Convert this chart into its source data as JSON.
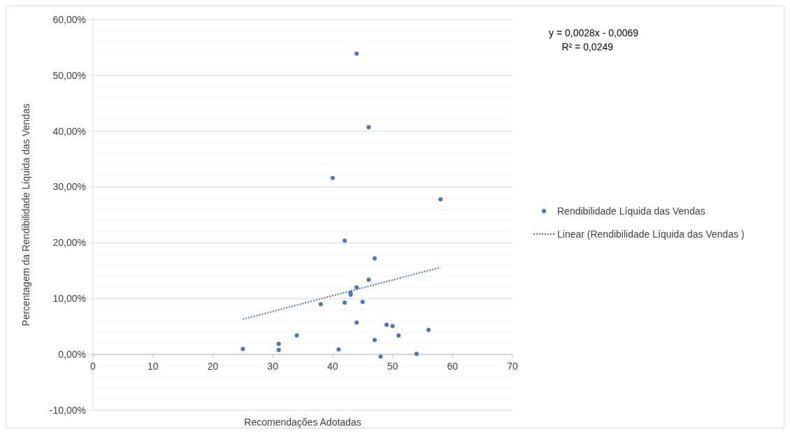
{
  "chart_data": {
    "type": "scatter",
    "xlabel": "Recomendações Adotadas",
    "ylabel": "Percentagem da Rendibilidade Líquida das Vendas",
    "annotations": [
      "y = 0,0028x - 0,0069",
      "R² = 0,0249"
    ],
    "series": [
      {
        "name": "Rendibilidade Líquida das Vendas",
        "color": "#4472c4",
        "marker": "circle",
        "x": [
          25,
          31,
          31,
          34,
          38,
          41,
          42,
          42,
          40,
          44,
          43,
          43,
          44,
          44,
          45,
          46,
          47,
          46,
          47,
          48,
          49,
          50,
          51,
          54,
          56,
          58
        ],
        "values": [
          1.0,
          1.9,
          0.8,
          3.4,
          9.0,
          0.9,
          9.3,
          20.4,
          31.6,
          53.9,
          10.7,
          11.0,
          12.0,
          5.7,
          9.4,
          13.4,
          17.2,
          40.7,
          2.6,
          -0.4,
          5.3,
          5.1,
          3.4,
          0.1,
          4.4,
          27.8
        ]
      },
      {
        "name": "Linear (Rendibilidade Líquida das Vendas )",
        "color": "#4472c4",
        "type": "line",
        "line_style": "dotted",
        "marker": "none",
        "x": [
          25,
          58
        ],
        "values": [
          6.3,
          15.6
        ]
      }
    ],
    "xlim": [
      0,
      70
    ],
    "xticks": [
      0,
      10,
      20,
      30,
      40,
      50,
      60,
      70
    ],
    "ylim": [
      -10,
      60
    ],
    "yticks": [
      {
        "value": -10,
        "label": "-10,00%"
      },
      {
        "value": -8,
        "label": null
      },
      {
        "value": -6,
        "label": null
      },
      {
        "value": -4,
        "label": null
      },
      {
        "value": -2,
        "label": null
      },
      {
        "value": 0,
        "label": "0,00%"
      },
      {
        "value": 2,
        "label": null
      },
      {
        "value": 4,
        "label": null
      },
      {
        "value": 6,
        "label": null
      },
      {
        "value": 8,
        "label": null
      },
      {
        "value": 10,
        "label": "10,00%"
      },
      {
        "value": 12,
        "label": null
      },
      {
        "value": 14,
        "label": null
      },
      {
        "value": 16,
        "label": null
      },
      {
        "value": 18,
        "label": null
      },
      {
        "value": 20,
        "label": "20,00%"
      },
      {
        "value": 22,
        "label": null
      },
      {
        "value": 24,
        "label": null
      },
      {
        "value": 26,
        "label": null
      },
      {
        "value": 28,
        "label": null
      },
      {
        "value": 30,
        "label": "30,00%"
      },
      {
        "value": 32,
        "label": null
      },
      {
        "value": 34,
        "label": null
      },
      {
        "value": 36,
        "label": null
      },
      {
        "value": 38,
        "label": null
      },
      {
        "value": 40,
        "label": "40,00%"
      },
      {
        "value": 42,
        "label": null
      },
      {
        "value": 44,
        "label": null
      },
      {
        "value": 46,
        "label": null
      },
      {
        "value": 48,
        "label": null
      },
      {
        "value": 50,
        "label": "50,00%"
      },
      {
        "value": 52,
        "label": null
      },
      {
        "value": 54,
        "label": null
      },
      {
        "value": 56,
        "label": null
      },
      {
        "value": 58,
        "label": null
      },
      {
        "value": 60,
        "label": "60,00%"
      }
    ],
    "grid": "y",
    "legend": "right"
  }
}
